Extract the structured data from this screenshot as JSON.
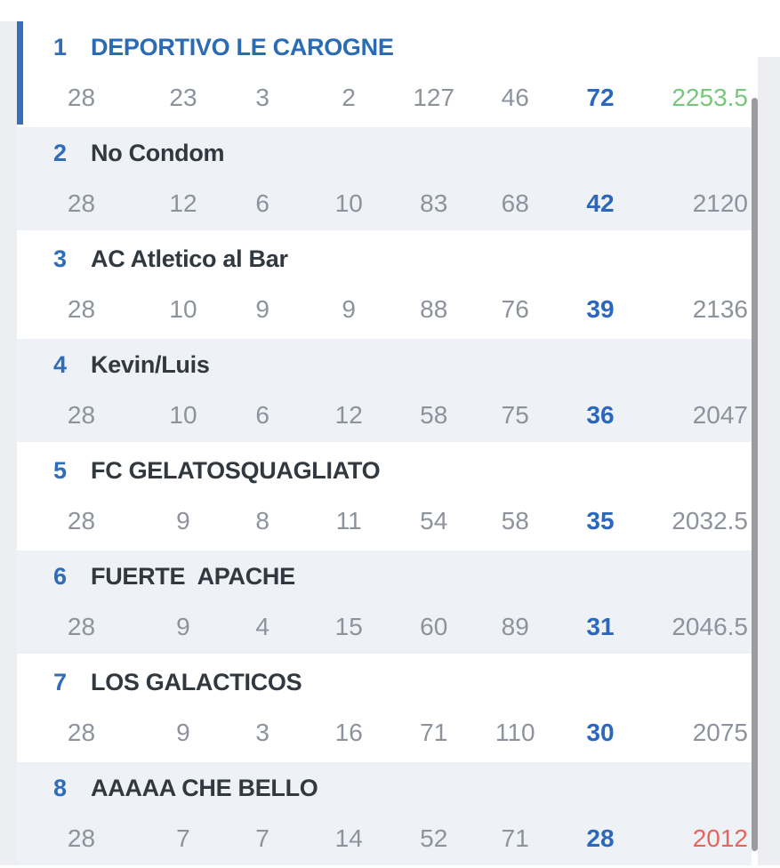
{
  "table": {
    "name": "league-standings",
    "rows": [
      {
        "rank": "1",
        "name": "DEPORTIVO LE CAROGNE",
        "played": "28",
        "won": "23",
        "drawn": "3",
        "lost": "2",
        "goals_for": "127",
        "goals_against": "46",
        "points": "72",
        "total": "2253.5",
        "leader": true,
        "total_status": "top"
      },
      {
        "rank": "2",
        "name": "No Condom",
        "played": "28",
        "won": "12",
        "drawn": "6",
        "lost": "10",
        "goals_for": "83",
        "goals_against": "68",
        "points": "42",
        "total": "2120",
        "leader": false,
        "total_status": "normal"
      },
      {
        "rank": "3",
        "name": "AC Atletico al Bar",
        "played": "28",
        "won": "10",
        "drawn": "9",
        "lost": "9",
        "goals_for": "88",
        "goals_against": "76",
        "points": "39",
        "total": "2136",
        "leader": false,
        "total_status": "normal"
      },
      {
        "rank": "4",
        "name": "Kevin/Luis",
        "played": "28",
        "won": "10",
        "drawn": "6",
        "lost": "12",
        "goals_for": "58",
        "goals_against": "75",
        "points": "36",
        "total": "2047",
        "leader": false,
        "total_status": "normal"
      },
      {
        "rank": "5",
        "name": "FC GELATOSQUAGLIATO",
        "played": "28",
        "won": "9",
        "drawn": "8",
        "lost": "11",
        "goals_for": "54",
        "goals_against": "58",
        "points": "35",
        "total": "2032.5",
        "leader": false,
        "total_status": "normal"
      },
      {
        "rank": "6",
        "name": "FUERTE  APACHE",
        "played": "28",
        "won": "9",
        "drawn": "4",
        "lost": "15",
        "goals_for": "60",
        "goals_against": "89",
        "points": "31",
        "total": "2046.5",
        "leader": false,
        "total_status": "normal"
      },
      {
        "rank": "7",
        "name": "LOS GALACTICOS",
        "played": "28",
        "won": "9",
        "drawn": "3",
        "lost": "16",
        "goals_for": "71",
        "goals_against": "110",
        "points": "30",
        "total": "2075",
        "leader": false,
        "total_status": "normal"
      },
      {
        "rank": "8",
        "name": "AAAAA CHE BELLO",
        "played": "28",
        "won": "7",
        "drawn": "7",
        "lost": "14",
        "goals_for": "52",
        "goals_against": "71",
        "points": "28",
        "total": "2012",
        "leader": false,
        "total_status": "bottom"
      }
    ]
  },
  "colors": {
    "accent_blue": "#3a6fb8",
    "rank_blue": "#2f6db8",
    "leader_name_blue": "#2a6bb4",
    "points_blue": "#2b68bd",
    "top_total_green": "#76c77b",
    "bottom_total_red": "#e5655f",
    "stat_gray": "#8d939d",
    "team_dark": "#32383f",
    "row_alt_bg": "#eef1f6",
    "margin_bg": "#eceef2",
    "scrollbar_gray": "#9c9c9c"
  }
}
